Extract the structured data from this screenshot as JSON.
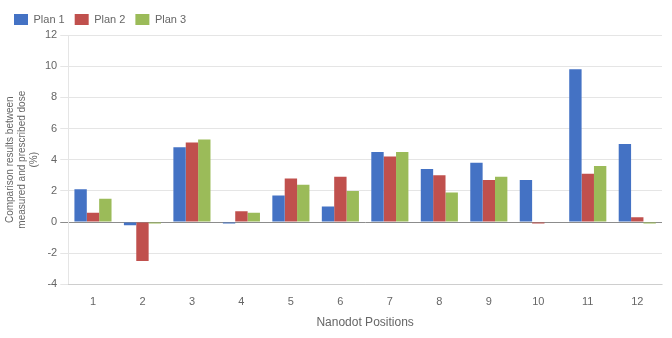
{
  "chart_data": {
    "type": "bar",
    "categories": [
      "1",
      "2",
      "3",
      "4",
      "5",
      "6",
      "7",
      "8",
      "9",
      "10",
      "11",
      "12"
    ],
    "series": [
      {
        "name": "Plan 1",
        "color": "#4472C4",
        "values": [
          2.1,
          -0.2,
          4.8,
          -0.1,
          1.7,
          1.0,
          4.5,
          3.4,
          3.8,
          2.7,
          9.8,
          5.0
        ]
      },
      {
        "name": "Plan 2",
        "color": "#C0504D",
        "values": [
          0.6,
          -2.5,
          5.1,
          0.7,
          2.8,
          2.9,
          4.2,
          3.0,
          2.7,
          -0.1,
          3.1,
          0.3
        ]
      },
      {
        "name": "Plan 3",
        "color": "#9BBB59",
        "values": [
          1.5,
          -0.1,
          5.3,
          0.6,
          2.4,
          2.0,
          4.5,
          1.9,
          2.9,
          0.0,
          3.6,
          -0.1
        ]
      }
    ],
    "xlabel": "Nanodot Positions",
    "ylabel": "Comparison results between\nmeasured and prescribed dose\n(%)",
    "ylim": [
      -4,
      12
    ],
    "yticks": [
      -4,
      -2,
      0,
      2,
      4,
      6,
      8,
      10,
      12
    ],
    "grid": true,
    "legend": "upper left"
  }
}
